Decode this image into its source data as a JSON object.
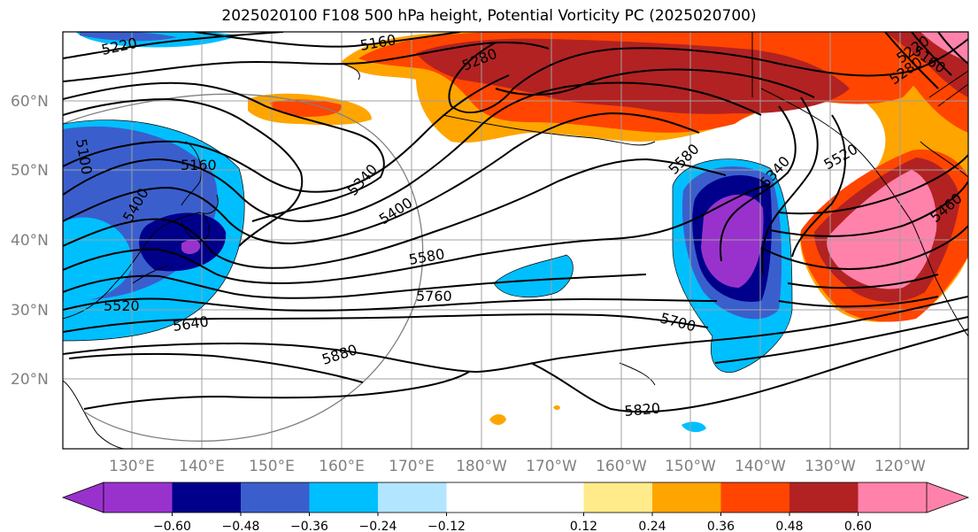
{
  "title": "2025020100 F108 500 hPa height, Potential Vorticity PC (2025020700)",
  "lat_labels": [
    "60°N",
    "50°N",
    "40°N",
    "30°N",
    "20°N"
  ],
  "lon_labels": [
    "130°E",
    "140°E",
    "150°E",
    "160°E",
    "170°E",
    "180°W",
    "170°W",
    "160°W",
    "150°W",
    "140°W",
    "130°W",
    "120°W"
  ],
  "contour_labels": [
    "5220",
    "5160",
    "5280",
    "5160",
    "5220",
    "5280",
    "5100",
    "5160",
    "5400",
    "5340",
    "5400",
    "5580",
    "5760",
    "5520",
    "5640",
    "5880",
    "5580",
    "5340",
    "5520",
    "5460",
    "5700",
    "5820"
  ],
  "colorbar": {
    "colors": [
      "#9932CC",
      "#00008B",
      "#3A5FCD",
      "#00BFFF",
      "#B2E5FF",
      "#FFFFFF",
      "#FFFFFF",
      "#FFEB8A",
      "#FFA500",
      "#FF4500",
      "#B22222",
      "#FF82AB"
    ],
    "tick_labels": [
      "−0.60",
      "−0.48",
      "−0.36",
      "−0.24",
      "−0.12",
      "0.12",
      "0.24",
      "0.36",
      "0.48",
      "0.60"
    ]
  }
}
